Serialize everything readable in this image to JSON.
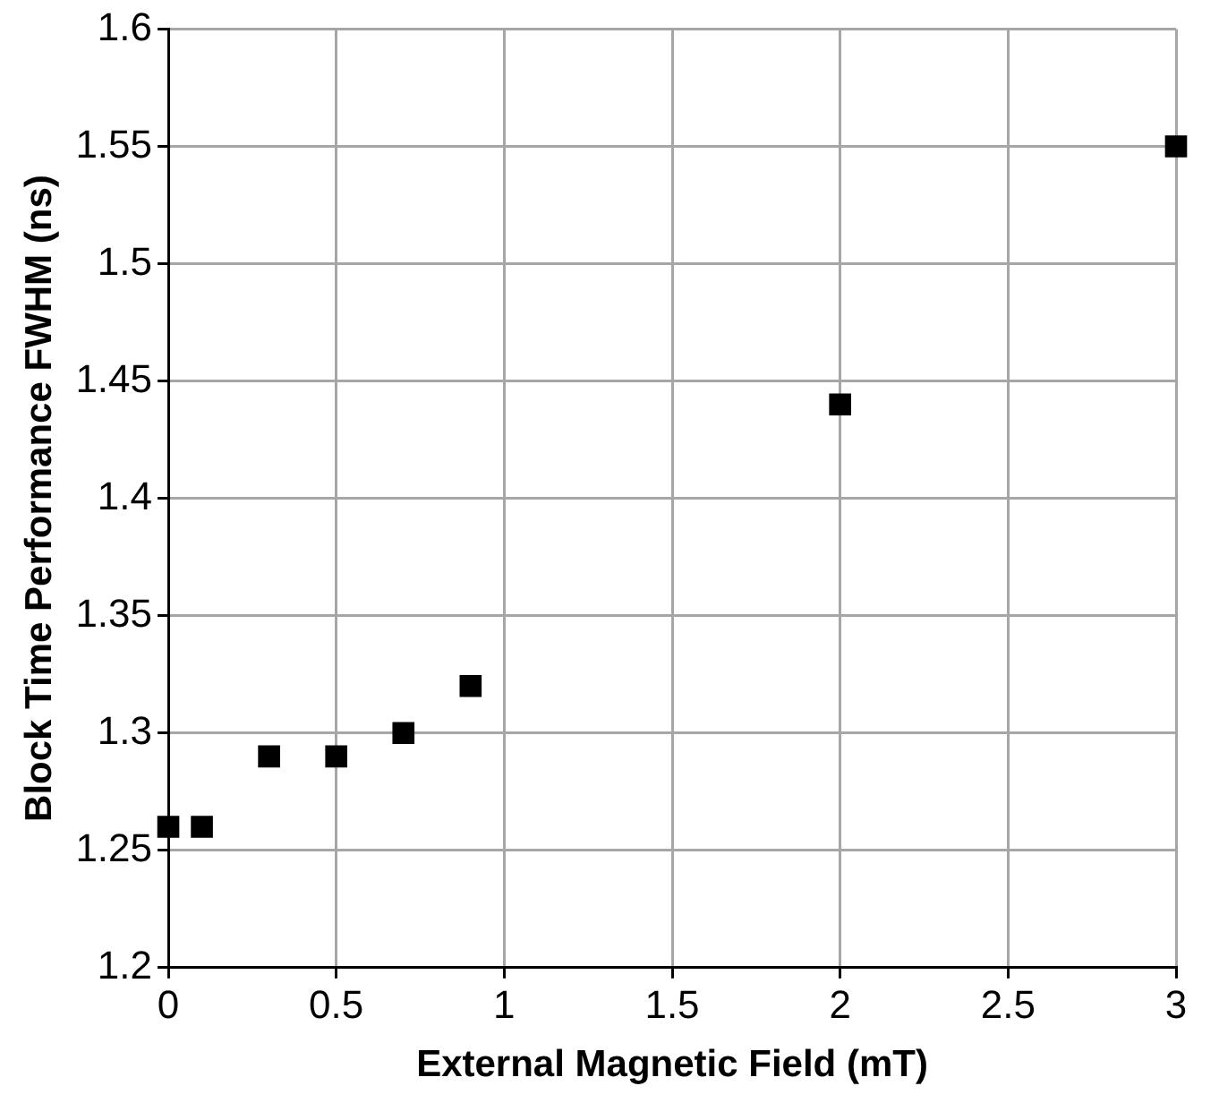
{
  "chart_data": {
    "type": "scatter",
    "xlabel": "External Magnetic Field (mT)",
    "ylabel": "Block Time Performance FWHM (ns)",
    "x": [
      0,
      0.1,
      0.3,
      0.5,
      0.7,
      0.9,
      2,
      3
    ],
    "series": [
      {
        "color": "#000000",
        "values": [
          1.26,
          1.26,
          1.29,
          1.29,
          1.3,
          1.32,
          1.44,
          1.55
        ]
      }
    ],
    "xlim": [
      0,
      3
    ],
    "xticks": [
      0,
      0.5,
      1,
      1.5,
      2,
      2.5,
      3
    ],
    "ylim": [
      1.2,
      1.6
    ],
    "yticks": [
      1.2,
      1.25,
      1.3,
      1.35,
      1.4,
      1.45,
      1.5,
      1.55,
      1.6
    ],
    "grid": true,
    "legend": false,
    "marker": "square"
  }
}
